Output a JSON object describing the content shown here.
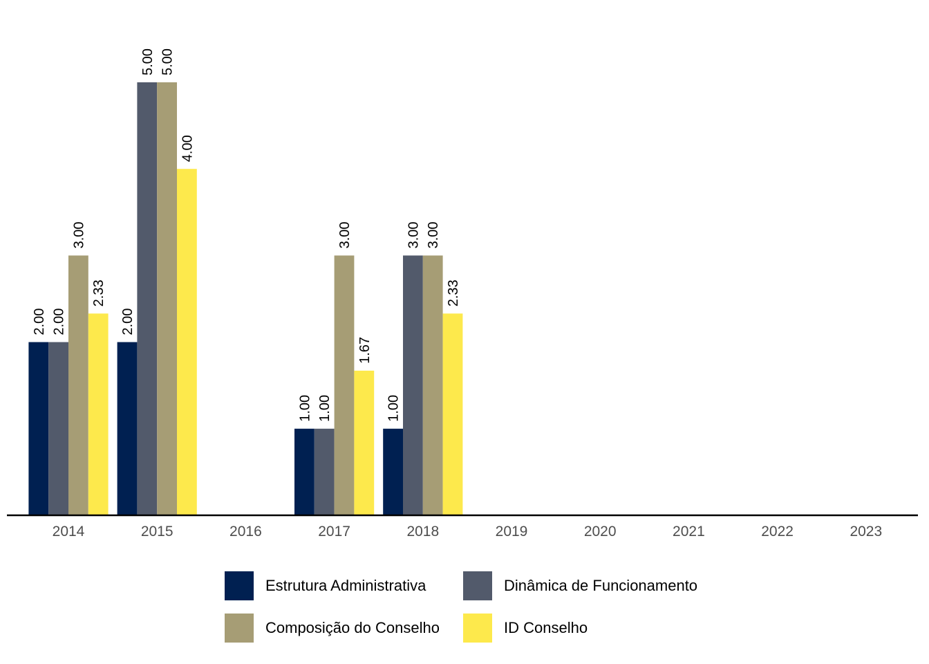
{
  "chart_data": {
    "type": "bar",
    "categories": [
      "2014",
      "2015",
      "2016",
      "2017",
      "2018",
      "2019",
      "2020",
      "2021",
      "2022",
      "2023"
    ],
    "series": [
      {
        "name": "Estrutura Administrativa",
        "color": "#002051",
        "values": [
          2.0,
          2.0,
          null,
          1.0,
          1.0,
          null,
          null,
          null,
          null,
          null
        ]
      },
      {
        "name": "Dinâmica de Funcionamento",
        "color": "#525a6b",
        "values": [
          2.0,
          5.0,
          null,
          1.0,
          3.0,
          null,
          null,
          null,
          null,
          null
        ]
      },
      {
        "name": "Composição do Conselho",
        "color": "#a69d75",
        "values": [
          3.0,
          5.0,
          null,
          3.0,
          3.0,
          null,
          null,
          null,
          null,
          null
        ]
      },
      {
        "name": "ID Conselho",
        "color": "#fde94c",
        "values": [
          2.33,
          4.0,
          null,
          1.67,
          2.33,
          null,
          null,
          null,
          null,
          null
        ]
      }
    ],
    "data_labels": [
      [
        "2.00",
        "2.00",
        null,
        "1.00",
        "1.00",
        null,
        null,
        null,
        null,
        null
      ],
      [
        "2.00",
        "5.00",
        null,
        "1.00",
        "3.00",
        null,
        null,
        null,
        null,
        null
      ],
      [
        "3.00",
        "5.00",
        null,
        "3.00",
        "3.00",
        null,
        null,
        null,
        null,
        null
      ],
      [
        "2.33",
        "4.00",
        null,
        "1.67",
        "2.33",
        null,
        null,
        null,
        null,
        null
      ]
    ],
    "ylim": [
      0,
      5
    ],
    "grid": false,
    "legend_position": "bottom"
  }
}
